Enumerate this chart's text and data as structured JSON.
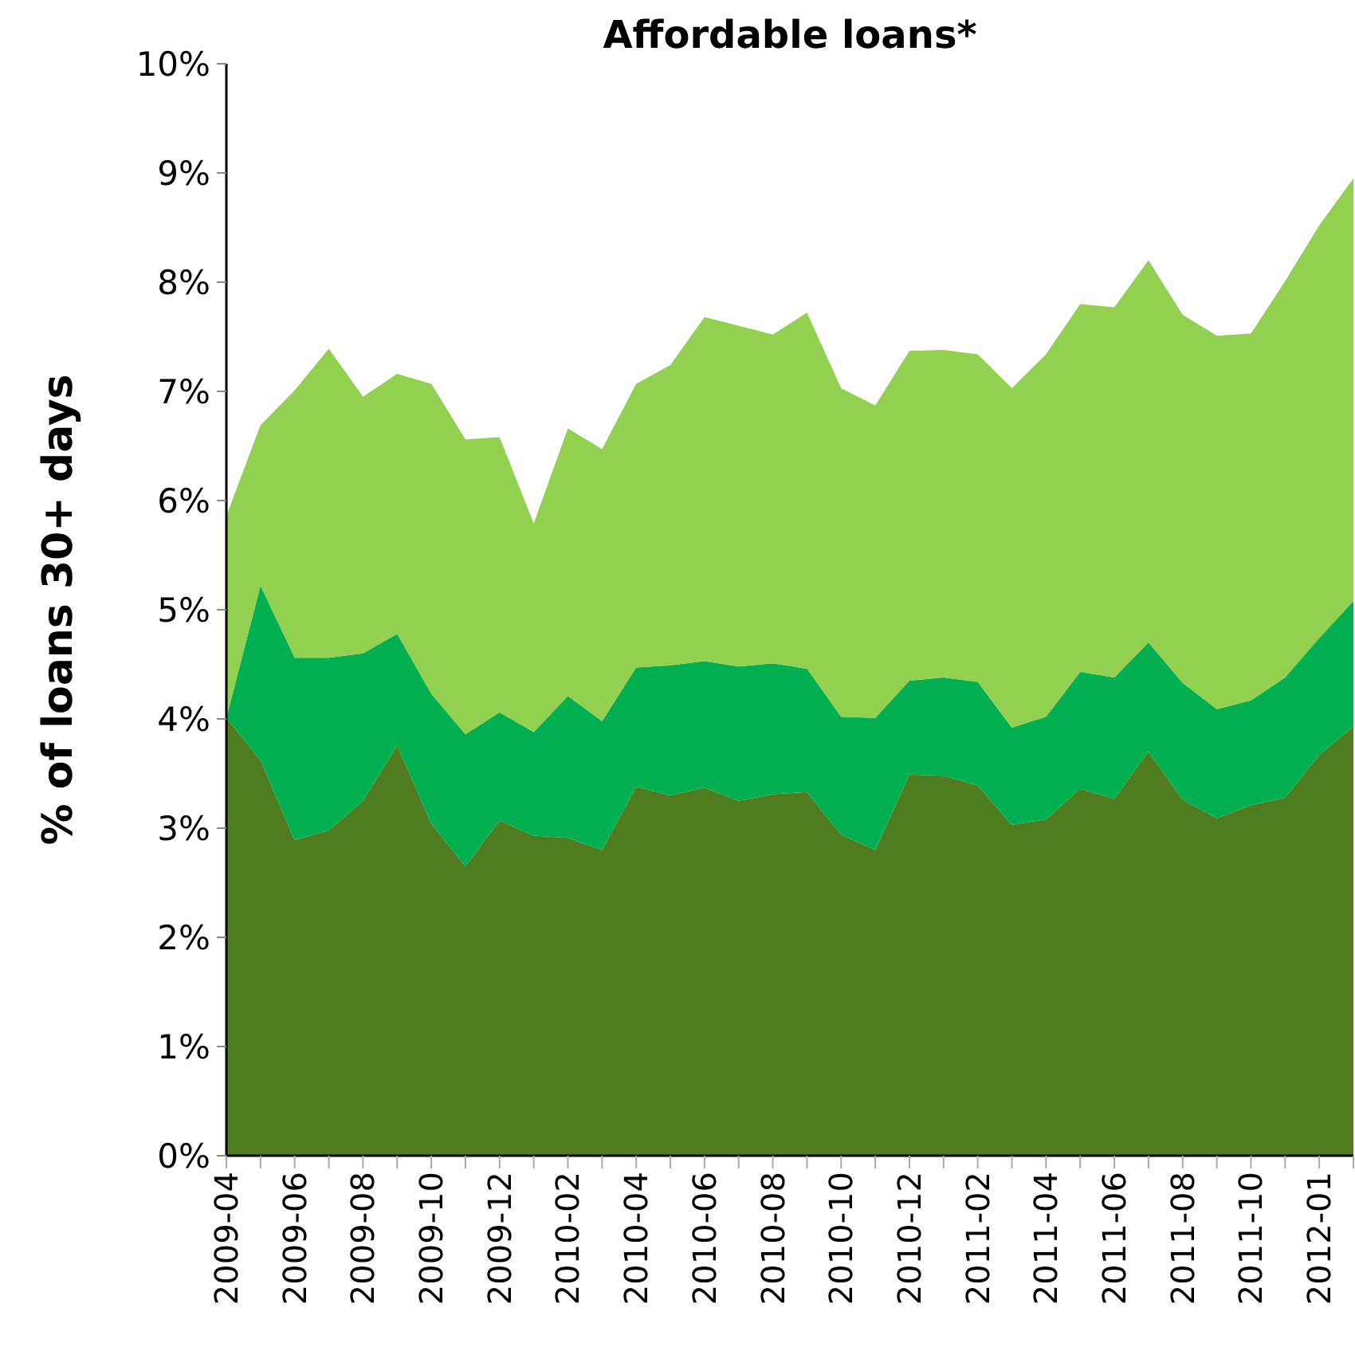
{
  "chart_data": {
    "type": "area",
    "title": "Affordable loans*",
    "ylabel": "% of loans 30+ days",
    "stacked": true,
    "grid": false,
    "categories": [
      "2009-04",
      null,
      "2009-06",
      null,
      "2009-08",
      null,
      "2009-10",
      null,
      "2009-12",
      null,
      "2010-02",
      null,
      "2010-04",
      null,
      "2010-06",
      null,
      "2010-08",
      null,
      "2010-10",
      null,
      "2010-12",
      null,
      "2011-02",
      null,
      "2011-04",
      null,
      "2011-06",
      null,
      "2011-08",
      null,
      "2011-10",
      null,
      "2012-01",
      null
    ],
    "ylim": [
      0,
      10
    ],
    "yticks": [
      {
        "value": 0,
        "label": "0%"
      },
      {
        "value": 1,
        "label": "1%"
      },
      {
        "value": 2,
        "label": "2%"
      },
      {
        "value": 3,
        "label": "3%"
      },
      {
        "value": 4,
        "label": "4%"
      },
      {
        "value": 5,
        "label": "5%"
      },
      {
        "value": 6,
        "label": "6%"
      },
      {
        "value": 7,
        "label": "7%"
      },
      {
        "value": 8,
        "label": "8%"
      },
      {
        "value": 9,
        "label": "9%"
      },
      {
        "value": 10,
        "label": "10%"
      }
    ],
    "series": [
      {
        "color": "#507c20",
        "values": [
          4.01,
          3.62,
          2.89,
          2.98,
          3.25,
          3.76,
          3.04,
          2.65,
          3.07,
          2.93,
          2.91,
          2.8,
          3.38,
          3.3,
          3.37,
          3.25,
          3.31,
          3.33,
          2.94,
          2.8,
          3.49,
          3.48,
          3.39,
          3.03,
          3.08,
          3.36,
          3.27,
          3.7,
          3.26,
          3.09,
          3.21,
          3.28,
          3.67,
          3.93
        ]
      },
      {
        "color": "#00b050",
        "values": [
          0.0,
          1.6,
          1.67,
          1.58,
          1.35,
          1.02,
          1.19,
          1.21,
          0.99,
          0.95,
          1.3,
          1.18,
          1.09,
          1.19,
          1.16,
          1.23,
          1.2,
          1.13,
          1.08,
          1.21,
          0.86,
          0.9,
          0.95,
          0.89,
          0.94,
          1.07,
          1.11,
          1.0,
          1.07,
          1.0,
          0.96,
          1.1,
          1.07,
          1.15
        ]
      },
      {
        "color": "#92d050",
        "values": [
          1.85,
          1.47,
          2.45,
          2.83,
          2.35,
          2.38,
          2.84,
          2.7,
          2.52,
          1.91,
          2.45,
          2.49,
          2.6,
          2.75,
          3.15,
          3.12,
          3.01,
          3.26,
          3.01,
          2.86,
          3.02,
          3.0,
          3.0,
          3.11,
          3.32,
          3.37,
          3.39,
          3.5,
          3.37,
          3.42,
          3.36,
          3.63,
          3.78,
          3.87
        ]
      }
    ]
  }
}
